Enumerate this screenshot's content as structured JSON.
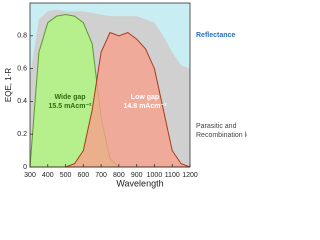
{
  "chart_data": {
    "type": "area",
    "x_label": "Wavelength",
    "y_label": "EQE, 1-R",
    "x": [
      300,
      350,
      400,
      450,
      500,
      550,
      600,
      650,
      700,
      750,
      800,
      850,
      900,
      950,
      1000,
      1050,
      1100,
      1150,
      1200
    ],
    "series": [
      {
        "color": "#d0d0d0",
        "values": [
          0.55,
          0.9,
          0.95,
          0.96,
          0.95,
          0.95,
          0.95,
          0.94,
          0.93,
          0.92,
          0.92,
          0.92,
          0.92,
          0.9,
          0.88,
          0.8,
          0.7,
          0.62,
          0.6
        ]
      },
      {
        "name": "Wide gap",
        "note": "15.5 mAcm⁻²",
        "color": "#b6f08c",
        "line": "#5a9a2a",
        "values": [
          0,
          0.7,
          0.88,
          0.92,
          0.93,
          0.92,
          0.88,
          0.75,
          0.3,
          0.05,
          0,
          0,
          0,
          0,
          0,
          0,
          0,
          0,
          0
        ]
      },
      {
        "name": "Low gap",
        "note": "14.8 mAcm⁻²",
        "color": "#f7a08c",
        "line": "#a83a1c",
        "values": [
          0,
          0,
          0,
          0,
          0,
          0.02,
          0.1,
          0.35,
          0.7,
          0.82,
          0.8,
          0.82,
          0.78,
          0.72,
          0.6,
          0.35,
          0.1,
          0.02,
          0
        ]
      }
    ],
    "annotations": [
      {
        "text": "Reflectance",
        "color": "#2a70b8"
      },
      {
        "text": [
          "Parasitic and",
          "Recombination losses"
        ],
        "color": "#444444"
      }
    ],
    "background": "#c8eef3",
    "xlim": [
      300,
      1200
    ],
    "xticks": [
      300,
      400,
      500,
      600,
      700,
      800,
      900,
      1000,
      1100,
      1200
    ],
    "ylim": [
      0,
      1
    ],
    "yticks": [
      0,
      0.2,
      0.4,
      0.6,
      0.8
    ]
  }
}
